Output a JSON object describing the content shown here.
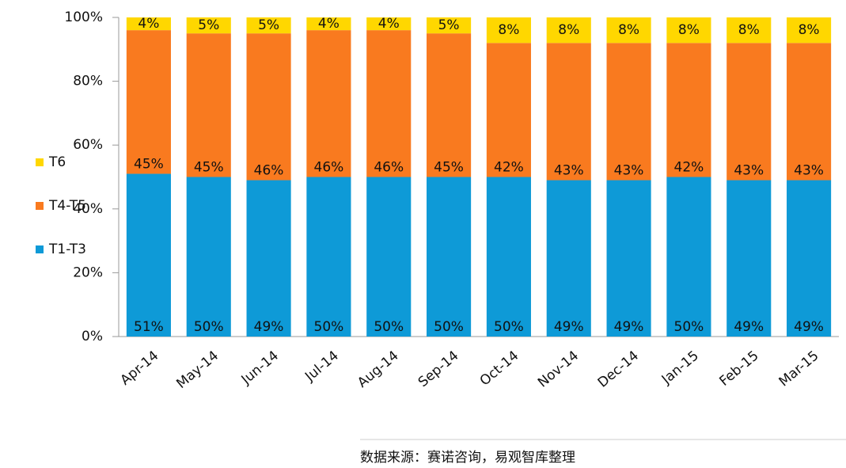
{
  "chart_data": {
    "type": "stacked_bar",
    "categories": [
      "Apr-14",
      "May-14",
      "Jun-14",
      "Jul-14",
      "Aug-14",
      "Sep-14",
      "Oct-14",
      "Nov-14",
      "Dec-14",
      "Jan-15",
      "Feb-15",
      "Mar-15"
    ],
    "series": [
      {
        "name": "T1-T3",
        "color": "#0e9ad7",
        "values": [
          51,
          50,
          49,
          50,
          50,
          50,
          50,
          49,
          49,
          50,
          49,
          49
        ],
        "value_labels": [
          "51%",
          "50%",
          "49%",
          "50%",
          "50%",
          "50%",
          "50%",
          "49%",
          "49%",
          "50%",
          "49%",
          "49%"
        ]
      },
      {
        "name": "T4-T5",
        "color": "#f97a1f",
        "values": [
          45,
          45,
          46,
          46,
          46,
          45,
          42,
          43,
          43,
          42,
          43,
          43
        ],
        "value_labels": [
          "45%",
          "45%",
          "46%",
          "46%",
          "46%",
          "45%",
          "42%",
          "43%",
          "43%",
          "42%",
          "43%",
          "43%"
        ]
      },
      {
        "name": "T6",
        "color": "#ffd700",
        "values": [
          4,
          5,
          5,
          4,
          4,
          5,
          8,
          8,
          8,
          8,
          8,
          8
        ],
        "value_labels": [
          "4%",
          "5%",
          "5%",
          "4%",
          "4%",
          "5%",
          "8%",
          "8%",
          "8%",
          "8%",
          "8%",
          "8%"
        ]
      }
    ],
    "ylim": [
      0,
      100
    ],
    "yticks": [
      {
        "value": 0,
        "label": "0%"
      },
      {
        "value": 20,
        "label": "20%"
      },
      {
        "value": 40,
        "label": "40%"
      },
      {
        "value": 60,
        "label": "60%"
      },
      {
        "value": 80,
        "label": "80%"
      },
      {
        "value": 100,
        "label": "100%"
      }
    ],
    "legend": "left",
    "source": "数据来源：赛诺咨询，易观智库整理"
  }
}
